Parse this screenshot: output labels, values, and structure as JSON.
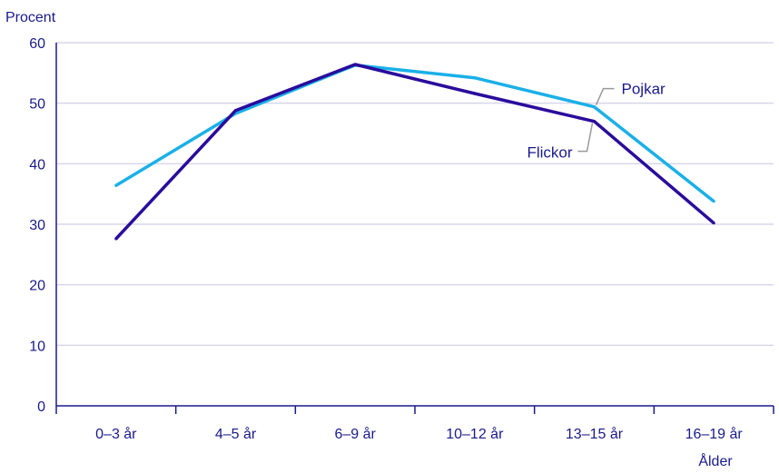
{
  "chart_data": {
    "type": "line",
    "title": "",
    "ylabel": "Procent",
    "xlabel": "Ålder",
    "categories": [
      "0–3 år",
      "4–5 år",
      "6–9 år",
      "10–12 år",
      "13–15 år",
      "16–19 år"
    ],
    "ylim": [
      0,
      60
    ],
    "yticks": [
      0,
      10,
      20,
      30,
      40,
      50,
      60
    ],
    "grid": true,
    "series": [
      {
        "name": "Pojkar",
        "values": [
          36.4,
          48.3,
          56.3,
          54.2,
          49.4,
          33.8
        ],
        "color": "#1ab0e8"
      },
      {
        "name": "Flickor",
        "values": [
          27.6,
          48.8,
          56.4,
          51.6,
          47.0,
          30.2
        ],
        "color": "#2a0c9c"
      }
    ]
  },
  "colors": {
    "axis": "#1a1a8c",
    "grid": "#d7d7ea",
    "leader": "#9a9a9a"
  }
}
